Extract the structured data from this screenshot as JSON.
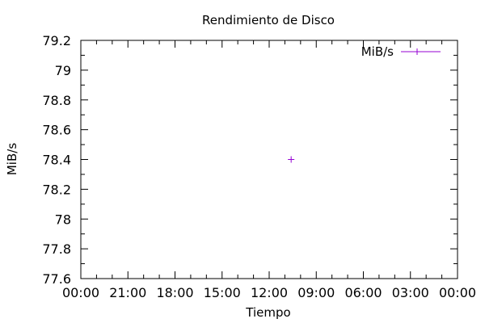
{
  "chart_data": {
    "type": "scatter",
    "title": "Rendimiento de Disco",
    "xlabel": "Tiempo",
    "ylabel": "MiB/s",
    "x_tick_labels": [
      "00:00",
      "21:00",
      "18:00",
      "15:00",
      "12:00",
      "09:00",
      "06:00",
      "03:00",
      "00:00"
    ],
    "y_ticks": [
      77.6,
      77.8,
      78,
      78.2,
      78.4,
      78.6,
      78.8,
      79,
      79.2
    ],
    "y_tick_labels": [
      "77.6",
      "77.8",
      "78",
      "78.2",
      "78.4",
      "78.6",
      "78.8",
      "79",
      "79.2"
    ],
    "ylim": [
      77.6,
      79.2
    ],
    "xlim": [
      24,
      0
    ],
    "x_axis_note": "hours, decreasing left to right",
    "series": [
      {
        "name": "MiB/s",
        "color": "#9400d3",
        "marker": "plus",
        "points": [
          {
            "x": 10.6,
            "y": 78.4
          }
        ]
      }
    ],
    "grid": false,
    "legend_position": "top-right"
  }
}
